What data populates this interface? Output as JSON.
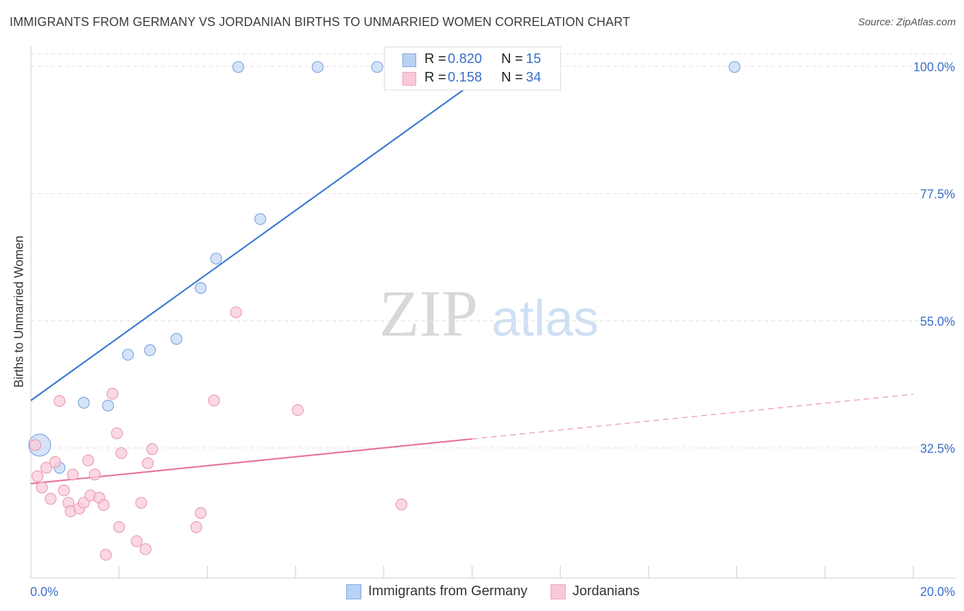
{
  "title": "IMMIGRANTS FROM GERMANY VS JORDANIAN BIRTHS TO UNMARRIED WOMEN CORRELATION CHART",
  "source": "Source: ZipAtlas.com",
  "watermark": {
    "part1": "ZIP",
    "part2": "atlas"
  },
  "legend": {
    "r_label": "R =",
    "n_label": "N =",
    "rows": [
      {
        "r": "0.820",
        "n": "15",
        "swatch_fill": "#b9d1f3",
        "swatch_stroke": "#7fa6e0"
      },
      {
        "r": "0.158",
        "n": "34",
        "swatch_fill": "#f9c9d8",
        "swatch_stroke": "#eea3bb"
      }
    ]
  },
  "bottom_legend": [
    {
      "label": "Immigrants from Germany",
      "swatch_fill": "#b9d1f3",
      "swatch_stroke": "#7fa6e0"
    },
    {
      "label": "Jordanians",
      "swatch_fill": "#f9c9d8",
      "swatch_stroke": "#eea3bb"
    }
  ],
  "chart_data": {
    "type": "scatter",
    "xlabel": "",
    "ylabel": "Births to Unmarried Women",
    "x_tick_labels": [
      "0.0%",
      "20.0%"
    ],
    "y_tick_labels": [
      "32.5%",
      "55.0%",
      "77.5%",
      "100.0%"
    ],
    "y_ticks": [
      32.5,
      55.0,
      77.5,
      100.0
    ],
    "xlim": [
      0,
      20
    ],
    "ylim": [
      11,
      102
    ],
    "grid": true,
    "legend_position": "top-center",
    "colors": {
      "blue": "#3a79d2",
      "pink": "#e8739a",
      "blue_fill": "#c5d9f5",
      "pink_fill": "#f8ccda",
      "tick_text": "#3a70c8"
    },
    "series": [
      {
        "name": "Immigrants from Germany",
        "color": "#3a79d2",
        "points": [
          {
            "x": 0.2,
            "y": 33.0,
            "large": true
          },
          {
            "x": 0.65,
            "y": 29.0
          },
          {
            "x": 1.2,
            "y": 40.5
          },
          {
            "x": 1.75,
            "y": 40.0
          },
          {
            "x": 2.2,
            "y": 49.0
          },
          {
            "x": 2.7,
            "y": 49.8
          },
          {
            "x": 3.3,
            "y": 51.8
          },
          {
            "x": 3.85,
            "y": 60.8
          },
          {
            "x": 4.2,
            "y": 66.0
          },
          {
            "x": 5.2,
            "y": 73.0
          },
          {
            "x": 4.7,
            "y": 99.9
          },
          {
            "x": 6.5,
            "y": 99.9
          },
          {
            "x": 7.85,
            "y": 99.9
          },
          {
            "x": 8.75,
            "y": 99.9
          },
          {
            "x": 15.95,
            "y": 99.9
          }
        ],
        "trend": {
          "x0": 0.0,
          "y0": 40.9,
          "x1": 10.9,
          "y1": 102.0,
          "dashed_to": null
        }
      },
      {
        "name": "Jordanians",
        "color": "#e8739a",
        "points": [
          {
            "x": 0.1,
            "y": 33.0
          },
          {
            "x": 0.15,
            "y": 27.5
          },
          {
            "x": 0.25,
            "y": 25.5
          },
          {
            "x": 0.35,
            "y": 29.0
          },
          {
            "x": 0.45,
            "y": 23.5
          },
          {
            "x": 0.55,
            "y": 30.0
          },
          {
            "x": 0.65,
            "y": 40.8
          },
          {
            "x": 0.75,
            "y": 25.0
          },
          {
            "x": 0.85,
            "y": 22.8
          },
          {
            "x": 0.9,
            "y": 21.3
          },
          {
            "x": 0.95,
            "y": 27.8
          },
          {
            "x": 1.1,
            "y": 21.8
          },
          {
            "x": 1.2,
            "y": 22.8
          },
          {
            "x": 1.3,
            "y": 30.3
          },
          {
            "x": 1.35,
            "y": 24.1
          },
          {
            "x": 1.45,
            "y": 27.8
          },
          {
            "x": 1.55,
            "y": 23.7
          },
          {
            "x": 1.65,
            "y": 22.4
          },
          {
            "x": 1.7,
            "y": 13.6
          },
          {
            "x": 1.85,
            "y": 42.1
          },
          {
            "x": 1.95,
            "y": 35.1
          },
          {
            "x": 2.0,
            "y": 18.5
          },
          {
            "x": 2.05,
            "y": 31.6
          },
          {
            "x": 2.4,
            "y": 16.0
          },
          {
            "x": 2.5,
            "y": 22.8
          },
          {
            "x": 2.6,
            "y": 14.6
          },
          {
            "x": 2.65,
            "y": 29.8
          },
          {
            "x": 2.75,
            "y": 32.3
          },
          {
            "x": 3.75,
            "y": 18.5
          },
          {
            "x": 3.85,
            "y": 21.0
          },
          {
            "x": 4.15,
            "y": 40.9
          },
          {
            "x": 4.65,
            "y": 56.5
          },
          {
            "x": 6.05,
            "y": 39.2
          },
          {
            "x": 8.4,
            "y": 22.5
          }
        ],
        "trend": {
          "x0": 0.0,
          "y0": 26.2,
          "x1": 10.0,
          "y1": 34.1,
          "dashed_to": {
            "x": 20.0,
            "y": 42.0
          }
        }
      }
    ]
  }
}
